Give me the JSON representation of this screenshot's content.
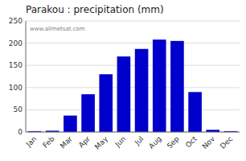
{
  "chart_data": {
    "type": "bar",
    "title": "Parakou : precipitation (mm)",
    "categories": [
      "Jan",
      "Feb",
      "Mar",
      "Apr",
      "May",
      "Jun",
      "Jul",
      "Aug",
      "Sep",
      "Oct",
      "Nov",
      "Dec"
    ],
    "values": [
      2,
      3,
      37,
      85,
      130,
      170,
      187,
      208,
      205,
      90,
      5,
      2
    ],
    "color": "#0000cc",
    "ylim": [
      0,
      250
    ],
    "yticks": [
      0,
      50,
      100,
      150,
      200,
      250
    ],
    "grid": true,
    "annotations": [
      "www.allmetsat.com"
    ]
  }
}
